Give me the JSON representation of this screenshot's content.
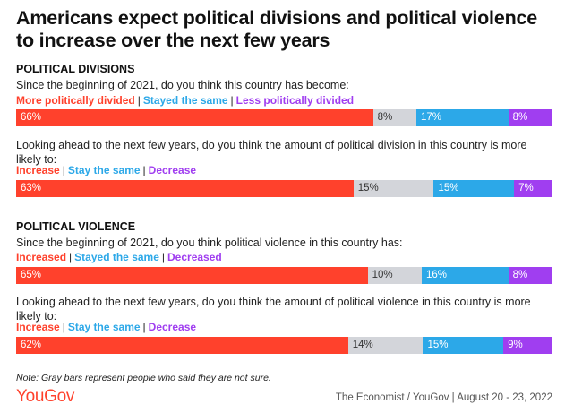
{
  "title": "Americans expect political divisions and political violence to increase over the next few years",
  "note": "Note: Gray bars represent people who said they are not sure.",
  "logo": "YouGov",
  "source": "The Economist / YouGov | August 20 - 23, 2022",
  "colors": {
    "red": "#ff412c",
    "gray": "#d3d5da",
    "blue": "#2ca8e8",
    "purple": "#a03ef0"
  },
  "chart_data": [
    {
      "type": "bar",
      "orientation": "horizontal-stacked",
      "section": "POLITICAL DIVISIONS",
      "question": "Since the beginning of 2021, do you think this country has become:",
      "series": [
        {
          "name": "More politically divided",
          "value": 66,
          "label": "66%",
          "color": "#ff412c"
        },
        {
          "name": "",
          "value": 8,
          "label": "8%",
          "color": "#d3d5da"
        },
        {
          "name": "Stayed the same",
          "value": 17,
          "label": "17%",
          "color": "#2ca8e8"
        },
        {
          "name": "Less politically divided",
          "value": 8,
          "label": "8%",
          "color": "#a03ef0"
        }
      ]
    },
    {
      "type": "bar",
      "orientation": "horizontal-stacked",
      "question": "Looking ahead to the next few years, do you think the amount of political division in this country is more likely to:",
      "series": [
        {
          "name": "Increase",
          "value": 63,
          "label": "63%",
          "color": "#ff412c"
        },
        {
          "name": "",
          "value": 15,
          "label": "15%",
          "color": "#d3d5da"
        },
        {
          "name": "Stay the same",
          "value": 15,
          "label": "15%",
          "color": "#2ca8e8"
        },
        {
          "name": "Decrease",
          "value": 7,
          "label": "7%",
          "color": "#a03ef0"
        }
      ]
    },
    {
      "type": "bar",
      "orientation": "horizontal-stacked",
      "section": "POLITICAL VIOLENCE",
      "question": "Since the beginning of 2021, do you think political violence in this country has:",
      "series": [
        {
          "name": "Increased",
          "value": 65,
          "label": "65%",
          "color": "#ff412c"
        },
        {
          "name": "",
          "value": 10,
          "label": "10%",
          "color": "#d3d5da"
        },
        {
          "name": "Stayed the same",
          "value": 16,
          "label": "16%",
          "color": "#2ca8e8"
        },
        {
          "name": "Decreased",
          "value": 8,
          "label": "8%",
          "color": "#a03ef0"
        }
      ]
    },
    {
      "type": "bar",
      "orientation": "horizontal-stacked",
      "question": "Looking ahead to the next few years, do you think the amount of political violence in this country is more likely to:",
      "series": [
        {
          "name": "Increase",
          "value": 62,
          "label": "62%",
          "color": "#ff412c"
        },
        {
          "name": "",
          "value": 14,
          "label": "14%",
          "color": "#d3d5da"
        },
        {
          "name": "Stay the same",
          "value": 15,
          "label": "15%",
          "color": "#2ca8e8"
        },
        {
          "name": "Decrease",
          "value": 9,
          "label": "9%",
          "color": "#a03ef0"
        }
      ]
    }
  ]
}
